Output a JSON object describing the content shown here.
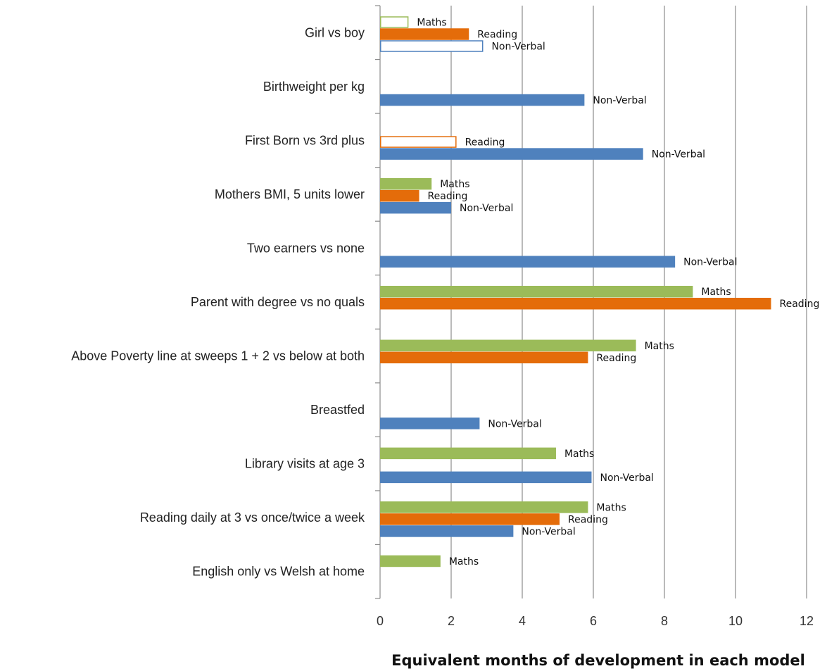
{
  "chart_data": {
    "type": "bar",
    "orientation": "horizontal",
    "title": "",
    "xlabel": "Equivalent  months of development in each model",
    "ylabel": "",
    "xlim": [
      0,
      12
    ],
    "xticks": [
      0,
      2,
      4,
      6,
      8,
      10,
      12
    ],
    "grid": "vertical",
    "legend": "none",
    "colors": {
      "Maths": "#9bbb59",
      "Reading": "#e46c0a",
      "Non-Verbal": "#4f81bd"
    },
    "series_names": [
      "Maths",
      "Reading",
      "Non-Verbal"
    ],
    "categories": [
      {
        "label": "Girl vs boy",
        "bars": [
          {
            "series": "Maths",
            "value": 0.8,
            "filled": false
          },
          {
            "series": "Reading",
            "value": 2.5,
            "filled": true
          },
          {
            "series": "Non-Verbal",
            "value": 2.9,
            "filled": false
          }
        ]
      },
      {
        "label": "Birthweight per kg",
        "bars": [
          {
            "series": "Non-Verbal",
            "value": 5.75,
            "filled": true
          }
        ]
      },
      {
        "label": "First Born vs 3rd plus",
        "bars": [
          {
            "series": "Reading",
            "value": 2.15,
            "filled": false
          },
          {
            "series": "Non-Verbal",
            "value": 7.4,
            "filled": true
          }
        ]
      },
      {
        "label": "Mothers BMI,  5 units lower",
        "bars": [
          {
            "series": "Maths",
            "value": 1.45,
            "filled": true
          },
          {
            "series": "Reading",
            "value": 1.1,
            "filled": true
          },
          {
            "series": "Non-Verbal",
            "value": 2.0,
            "filled": true
          }
        ]
      },
      {
        "label": "Two earners vs none",
        "bars": [
          {
            "series": "Non-Verbal",
            "value": 8.3,
            "filled": true
          }
        ]
      },
      {
        "label": "Parent with degree vs no quals",
        "bars": [
          {
            "series": "Maths",
            "value": 8.8,
            "filled": true
          },
          {
            "series": "Reading",
            "value": 11.0,
            "filled": true
          }
        ]
      },
      {
        "label": "Above Poverty line at  sweeps 1 + 2 vs below at both",
        "bars": [
          {
            "series": "Maths",
            "value": 7.2,
            "filled": true
          },
          {
            "series": "Reading",
            "value": 5.85,
            "filled": true
          }
        ]
      },
      {
        "label": "Breastfed",
        "bars": [
          {
            "series": "Non-Verbal",
            "value": 2.8,
            "filled": true
          }
        ]
      },
      {
        "label": "Library visits at age 3",
        "bars": [
          {
            "series": "Maths",
            "value": 4.95,
            "filled": true
          },
          {
            "series": "Non-Verbal",
            "value": 5.95,
            "filled": true
          }
        ]
      },
      {
        "label": "Reading daily  at 3 vs once/twice a week",
        "bars": [
          {
            "series": "Maths",
            "value": 5.85,
            "filled": true
          },
          {
            "series": "Reading",
            "value": 5.05,
            "filled": true
          },
          {
            "series": "Non-Verbal",
            "value": 3.75,
            "filled": true
          }
        ]
      },
      {
        "label": "English only vs Welsh at home",
        "bars": [
          {
            "series": "Maths",
            "value": 1.7,
            "filled": true
          }
        ]
      }
    ]
  }
}
